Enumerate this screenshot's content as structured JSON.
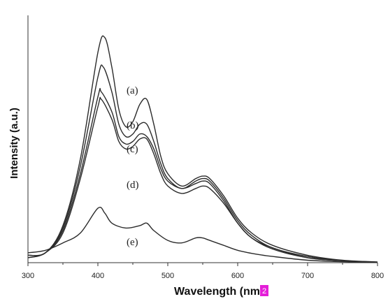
{
  "colors": {
    "line": "#2b2b2b",
    "axis": "#333333",
    "badge": "#e41ed8",
    "background": "#ffffff"
  },
  "badge": "2",
  "chart_data": {
    "type": "line",
    "title": "",
    "xlabel": "Wavelength (nm",
    "ylabel": "Intensity (a.u.)",
    "xlim": [
      300,
      800
    ],
    "ylim": [
      0,
      1.0
    ],
    "xticks": [
      300,
      400,
      500,
      600,
      700,
      800
    ],
    "grid": false,
    "legend": "none",
    "series": [
      {
        "name": "(a)",
        "points": [
          [
            300,
            0.03
          ],
          [
            325,
            0.04
          ],
          [
            350,
            0.15
          ],
          [
            375,
            0.42
          ],
          [
            400,
            0.85
          ],
          [
            410,
            0.91
          ],
          [
            420,
            0.79
          ],
          [
            430,
            0.62
          ],
          [
            440,
            0.55
          ],
          [
            450,
            0.57
          ],
          [
            460,
            0.64
          ],
          [
            470,
            0.66
          ],
          [
            480,
            0.56
          ],
          [
            490,
            0.43
          ],
          [
            500,
            0.36
          ],
          [
            520,
            0.31
          ],
          [
            540,
            0.34
          ],
          [
            550,
            0.35
          ],
          [
            560,
            0.34
          ],
          [
            580,
            0.27
          ],
          [
            600,
            0.18
          ],
          [
            620,
            0.12
          ],
          [
            650,
            0.07
          ],
          [
            700,
            0.03
          ],
          [
            750,
            0.01
          ],
          [
            800,
            0.003
          ]
        ]
      },
      {
        "name": "(b)",
        "points": [
          [
            300,
            0.03
          ],
          [
            325,
            0.04
          ],
          [
            350,
            0.14
          ],
          [
            375,
            0.39
          ],
          [
            400,
            0.75
          ],
          [
            408,
            0.79
          ],
          [
            420,
            0.69
          ],
          [
            430,
            0.56
          ],
          [
            440,
            0.51
          ],
          [
            450,
            0.52
          ],
          [
            460,
            0.56
          ],
          [
            470,
            0.56
          ],
          [
            480,
            0.49
          ],
          [
            490,
            0.4
          ],
          [
            500,
            0.34
          ],
          [
            520,
            0.3
          ],
          [
            540,
            0.33
          ],
          [
            550,
            0.34
          ],
          [
            560,
            0.33
          ],
          [
            580,
            0.26
          ],
          [
            600,
            0.17
          ],
          [
            620,
            0.11
          ],
          [
            650,
            0.06
          ],
          [
            700,
            0.025
          ],
          [
            750,
            0.008
          ],
          [
            800,
            0.002
          ]
        ]
      },
      {
        "name": "(c)",
        "points": [
          [
            300,
            0.02
          ],
          [
            325,
            0.04
          ],
          [
            350,
            0.13
          ],
          [
            375,
            0.36
          ],
          [
            400,
            0.67
          ],
          [
            405,
            0.69
          ],
          [
            420,
            0.61
          ],
          [
            430,
            0.51
          ],
          [
            440,
            0.48
          ],
          [
            450,
            0.49
          ],
          [
            460,
            0.52
          ],
          [
            470,
            0.51
          ],
          [
            480,
            0.46
          ],
          [
            490,
            0.38
          ],
          [
            500,
            0.33
          ],
          [
            520,
            0.3
          ],
          [
            540,
            0.32
          ],
          [
            550,
            0.33
          ],
          [
            560,
            0.32
          ],
          [
            580,
            0.25
          ],
          [
            600,
            0.16
          ],
          [
            620,
            0.1
          ],
          [
            650,
            0.06
          ],
          [
            700,
            0.02
          ],
          [
            750,
            0.008
          ],
          [
            800,
            0.002
          ]
        ]
      },
      {
        "name": "(d)",
        "points": [
          [
            300,
            0.02
          ],
          [
            325,
            0.04
          ],
          [
            350,
            0.12
          ],
          [
            375,
            0.34
          ],
          [
            400,
            0.63
          ],
          [
            405,
            0.66
          ],
          [
            420,
            0.58
          ],
          [
            430,
            0.49
          ],
          [
            440,
            0.46
          ],
          [
            450,
            0.47
          ],
          [
            460,
            0.5
          ],
          [
            470,
            0.5
          ],
          [
            480,
            0.44
          ],
          [
            490,
            0.36
          ],
          [
            500,
            0.31
          ],
          [
            520,
            0.28
          ],
          [
            540,
            0.3
          ],
          [
            550,
            0.31
          ],
          [
            560,
            0.3
          ],
          [
            580,
            0.24
          ],
          [
            600,
            0.16
          ],
          [
            620,
            0.1
          ],
          [
            650,
            0.055
          ],
          [
            700,
            0.02
          ],
          [
            750,
            0.008
          ],
          [
            800,
            0.002
          ]
        ]
      },
      {
        "name": "(e)",
        "points": [
          [
            300,
            0.04
          ],
          [
            325,
            0.05
          ],
          [
            350,
            0.08
          ],
          [
            375,
            0.12
          ],
          [
            400,
            0.22
          ],
          [
            410,
            0.2
          ],
          [
            420,
            0.16
          ],
          [
            440,
            0.14
          ],
          [
            460,
            0.15
          ],
          [
            470,
            0.16
          ],
          [
            480,
            0.13
          ],
          [
            500,
            0.09
          ],
          [
            520,
            0.08
          ],
          [
            540,
            0.1
          ],
          [
            550,
            0.1
          ],
          [
            560,
            0.09
          ],
          [
            580,
            0.07
          ],
          [
            600,
            0.05
          ],
          [
            625,
            0.035
          ],
          [
            650,
            0.025
          ],
          [
            700,
            0.01
          ],
          [
            750,
            0.004
          ],
          [
            800,
            0.001
          ]
        ]
      }
    ],
    "annotations": [
      "(a)",
      "(b)",
      "(c)",
      "(d)",
      "(e)"
    ]
  }
}
